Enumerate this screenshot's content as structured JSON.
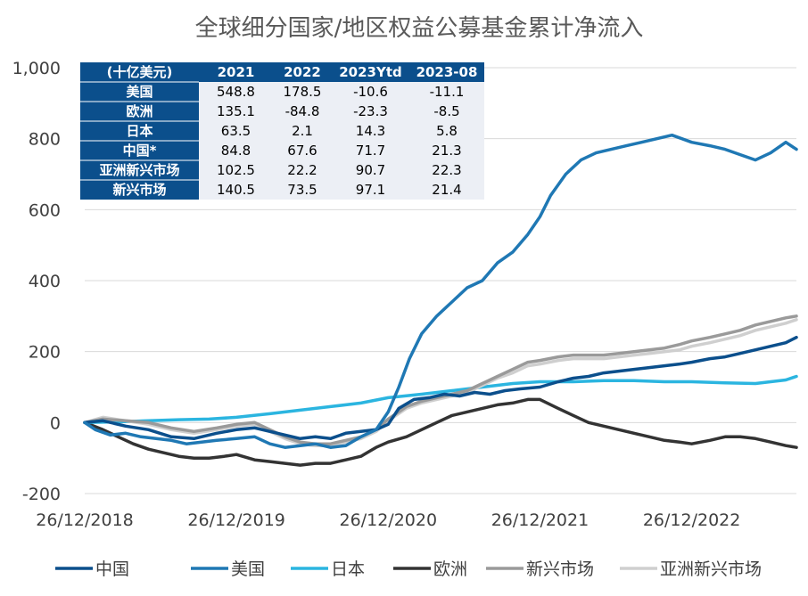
{
  "chart_data": {
    "type": "line",
    "title": "全球细分国家/地区权益公募基金累计净流入",
    "xlabel": "",
    "ylabel": "",
    "ylim": [
      -200,
      1000
    ],
    "yticks": [
      "1,000",
      "800",
      "600",
      "400",
      "200",
      "0",
      "-200"
    ],
    "ytick_values": [
      1000,
      800,
      600,
      400,
      200,
      0,
      -200
    ],
    "xlim": [
      2018.98,
      2023.67
    ],
    "xticks": [
      "26/12/2018",
      "26/12/2019",
      "26/12/2020",
      "26/12/2021",
      "26/12/2022"
    ],
    "xtick_values": [
      2018.98,
      2019.98,
      2020.98,
      2021.98,
      2022.98
    ],
    "grid": true,
    "legend_position": "bottom",
    "series": [
      {
        "name": "中国",
        "color": "#0b4f8c",
        "x": [
          2018.98,
          2019.1,
          2019.25,
          2019.4,
          2019.55,
          2019.7,
          2019.85,
          2019.98,
          2020.1,
          2020.2,
          2020.3,
          2020.4,
          2020.5,
          2020.6,
          2020.7,
          2020.8,
          2020.9,
          2020.98,
          2021.05,
          2021.15,
          2021.25,
          2021.35,
          2021.45,
          2021.55,
          2021.65,
          2021.75,
          2021.85,
          2021.98,
          2022.1,
          2022.2,
          2022.3,
          2022.4,
          2022.5,
          2022.6,
          2022.7,
          2022.8,
          2022.9,
          2022.98,
          2023.1,
          2023.2,
          2023.3,
          2023.4,
          2023.5,
          2023.6,
          2023.67
        ],
        "values": [
          0,
          5,
          -10,
          -20,
          -40,
          -45,
          -30,
          -20,
          -15,
          -25,
          -35,
          -45,
          -40,
          -45,
          -30,
          -25,
          -20,
          -5,
          40,
          65,
          70,
          80,
          75,
          85,
          80,
          90,
          95,
          100,
          115,
          125,
          130,
          140,
          145,
          150,
          155,
          160,
          165,
          170,
          180,
          185,
          195,
          205,
          215,
          225,
          240
        ]
      },
      {
        "name": "美国",
        "color": "#1f78b4",
        "x": [
          2018.98,
          2019.05,
          2019.15,
          2019.25,
          2019.35,
          2019.45,
          2019.55,
          2019.65,
          2019.75,
          2019.85,
          2019.98,
          2020.1,
          2020.2,
          2020.3,
          2020.4,
          2020.5,
          2020.6,
          2020.7,
          2020.8,
          2020.9,
          2020.98,
          2021.05,
          2021.12,
          2021.2,
          2021.3,
          2021.4,
          2021.5,
          2021.6,
          2021.7,
          2021.8,
          2021.9,
          2021.98,
          2022.05,
          2022.15,
          2022.25,
          2022.35,
          2022.45,
          2022.55,
          2022.65,
          2022.75,
          2022.85,
          2022.98,
          2023.1,
          2023.2,
          2023.3,
          2023.4,
          2023.5,
          2023.6,
          2023.67
        ],
        "values": [
          0,
          -20,
          -35,
          -30,
          -40,
          -45,
          -50,
          -60,
          -55,
          -50,
          -45,
          -40,
          -60,
          -70,
          -65,
          -60,
          -70,
          -65,
          -40,
          -20,
          30,
          100,
          180,
          250,
          300,
          340,
          380,
          400,
          450,
          480,
          530,
          580,
          640,
          700,
          740,
          760,
          770,
          780,
          790,
          800,
          810,
          790,
          780,
          770,
          755,
          740,
          760,
          790,
          770
        ]
      },
      {
        "name": "日本",
        "color": "#2bb5e0",
        "x": [
          2018.98,
          2019.2,
          2019.4,
          2019.6,
          2019.8,
          2019.98,
          2020.2,
          2020.4,
          2020.6,
          2020.8,
          2020.98,
          2021.2,
          2021.4,
          2021.6,
          2021.8,
          2021.98,
          2022.2,
          2022.4,
          2022.6,
          2022.8,
          2022.98,
          2023.2,
          2023.4,
          2023.6,
          2023.67
        ],
        "values": [
          0,
          2,
          5,
          8,
          10,
          15,
          25,
          35,
          45,
          55,
          70,
          80,
          90,
          100,
          110,
          115,
          115,
          118,
          118,
          115,
          115,
          112,
          110,
          120,
          130
        ]
      },
      {
        "name": "欧洲",
        "color": "#333333",
        "x": [
          2018.98,
          2019.1,
          2019.2,
          2019.3,
          2019.4,
          2019.5,
          2019.6,
          2019.7,
          2019.8,
          2019.9,
          2019.98,
          2020.1,
          2020.2,
          2020.3,
          2020.4,
          2020.5,
          2020.6,
          2020.7,
          2020.8,
          2020.9,
          2020.98,
          2021.1,
          2021.2,
          2021.3,
          2021.4,
          2021.5,
          2021.6,
          2021.7,
          2021.8,
          2021.9,
          2021.98,
          2022.1,
          2022.2,
          2022.3,
          2022.4,
          2022.5,
          2022.6,
          2022.7,
          2022.8,
          2022.9,
          2022.98,
          2023.1,
          2023.2,
          2023.3,
          2023.4,
          2023.5,
          2023.6,
          2023.67
        ],
        "values": [
          0,
          -20,
          -40,
          -60,
          -75,
          -85,
          -95,
          -100,
          -100,
          -95,
          -90,
          -105,
          -110,
          -115,
          -120,
          -115,
          -115,
          -105,
          -95,
          -70,
          -55,
          -40,
          -20,
          0,
          20,
          30,
          40,
          50,
          55,
          65,
          65,
          40,
          20,
          0,
          -10,
          -20,
          -30,
          -40,
          -50,
          -55,
          -60,
          -50,
          -40,
          -40,
          -45,
          -55,
          -65,
          -70
        ]
      },
      {
        "name": "新兴市场",
        "color": "#9a9a9a",
        "x": [
          2018.98,
          2019.1,
          2019.25,
          2019.4,
          2019.55,
          2019.7,
          2019.85,
          2019.98,
          2020.1,
          2020.2,
          2020.3,
          2020.4,
          2020.5,
          2020.6,
          2020.7,
          2020.8,
          2020.9,
          2020.98,
          2021.1,
          2021.2,
          2021.3,
          2021.4,
          2021.5,
          2021.6,
          2021.7,
          2021.8,
          2021.9,
          2021.98,
          2022.1,
          2022.2,
          2022.3,
          2022.4,
          2022.5,
          2022.6,
          2022.7,
          2022.8,
          2022.9,
          2022.98,
          2023.1,
          2023.2,
          2023.3,
          2023.4,
          2023.5,
          2023.6,
          2023.67
        ],
        "values": [
          0,
          10,
          5,
          0,
          -15,
          -25,
          -15,
          -5,
          0,
          -20,
          -40,
          -55,
          -60,
          -60,
          -50,
          -40,
          -20,
          10,
          45,
          60,
          70,
          80,
          90,
          110,
          130,
          150,
          170,
          175,
          185,
          190,
          190,
          190,
          195,
          200,
          205,
          210,
          220,
          230,
          240,
          250,
          260,
          275,
          285,
          295,
          300
        ]
      },
      {
        "name": "亚洲新兴市场",
        "color": "#cfcfcf",
        "x": [
          2018.98,
          2019.1,
          2019.25,
          2019.4,
          2019.55,
          2019.7,
          2019.85,
          2019.98,
          2020.1,
          2020.2,
          2020.3,
          2020.4,
          2020.5,
          2020.6,
          2020.7,
          2020.8,
          2020.9,
          2020.98,
          2021.1,
          2021.2,
          2021.3,
          2021.4,
          2021.5,
          2021.6,
          2021.7,
          2021.8,
          2021.9,
          2021.98,
          2022.1,
          2022.2,
          2022.3,
          2022.4,
          2022.5,
          2022.6,
          2022.7,
          2022.8,
          2022.9,
          2022.98,
          2023.1,
          2023.2,
          2023.3,
          2023.4,
          2023.5,
          2023.6,
          2023.67
        ],
        "values": [
          0,
          15,
          5,
          -5,
          -20,
          -30,
          -20,
          -10,
          -5,
          -25,
          -45,
          -60,
          -65,
          -65,
          -55,
          -45,
          -25,
          5,
          40,
          55,
          65,
          75,
          85,
          105,
          125,
          140,
          160,
          165,
          175,
          180,
          180,
          180,
          185,
          190,
          195,
          200,
          205,
          215,
          225,
          235,
          245,
          260,
          270,
          280,
          290
        ]
      }
    ],
    "table": {
      "header": [
        "(十亿美元)",
        "2021",
        "2022",
        "2023Ytd",
        "2023-08"
      ],
      "rows": [
        {
          "label": "美国",
          "values": [
            "548.8",
            "178.5",
            "-10.6",
            "-11.1"
          ]
        },
        {
          "label": "欧洲",
          "values": [
            "135.1",
            "-84.8",
            "-23.3",
            "-8.5"
          ]
        },
        {
          "label": "日本",
          "values": [
            "63.5",
            "2.1",
            "14.3",
            "5.8"
          ]
        },
        {
          "label": "中国*",
          "values": [
            "84.8",
            "67.6",
            "71.7",
            "21.3"
          ]
        },
        {
          "label": "亚洲新兴市场",
          "values": [
            "102.5",
            "22.2",
            "90.7",
            "22.3"
          ]
        },
        {
          "label": "新兴市场",
          "values": [
            "140.5",
            "73.5",
            "97.1",
            "21.4"
          ]
        }
      ],
      "header_color": "#0b4f8c",
      "body_color": "#eceff5"
    }
  }
}
